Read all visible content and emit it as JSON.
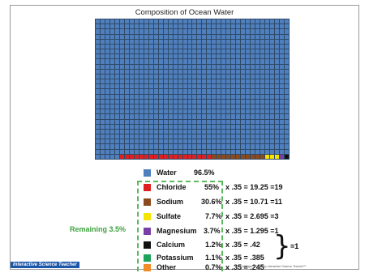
{
  "title": "Composition of Ocean Water",
  "grid": {
    "columns": 40,
    "rows": 28
  },
  "colors": {
    "water": "#4f7fbd",
    "chloride": "#e02020",
    "sodium": "#8b4a1e",
    "sulfate": "#f5e400",
    "magnesium": "#7a3fa6",
    "calcium": "#111111",
    "potassium": "#1ea35a",
    "other": "#f28c28",
    "accent_green": "#3fa13f"
  },
  "legend": {
    "water": {
      "name": "Water",
      "pct": "96.5%"
    },
    "chloride": {
      "name": "Chloride",
      "pct": "55%",
      "calc": "x .35 = 19.25 =19"
    },
    "sodium": {
      "name": "Sodium",
      "pct": "30.6%",
      "calc": "x .35 = 10.71 =11"
    },
    "sulfate": {
      "name": "Sulfate",
      "pct": "7.7%",
      "calc": "x .35 = 2.695 =3"
    },
    "magnesium": {
      "name": "Magnesium",
      "pct": "3.7%",
      "calc": "x .35 = 1.295 =1"
    },
    "calcium": {
      "name": "Calcium",
      "pct": "1.2%",
      "calc": "x .35 = .42"
    },
    "potassium": {
      "name": "Potassium",
      "pct": "1.1%",
      "calc": "x .35 = .385"
    },
    "other": {
      "name": "Other",
      "pct": "0.7%",
      "calc": "x .35 = .245"
    }
  },
  "remaining_label": "Remaining 3.5%",
  "brace_total": "=1",
  "logo_text": "Interactive Science Teacher",
  "copyright": "Copyright © 2010 by Interactive Science Teacher™"
}
